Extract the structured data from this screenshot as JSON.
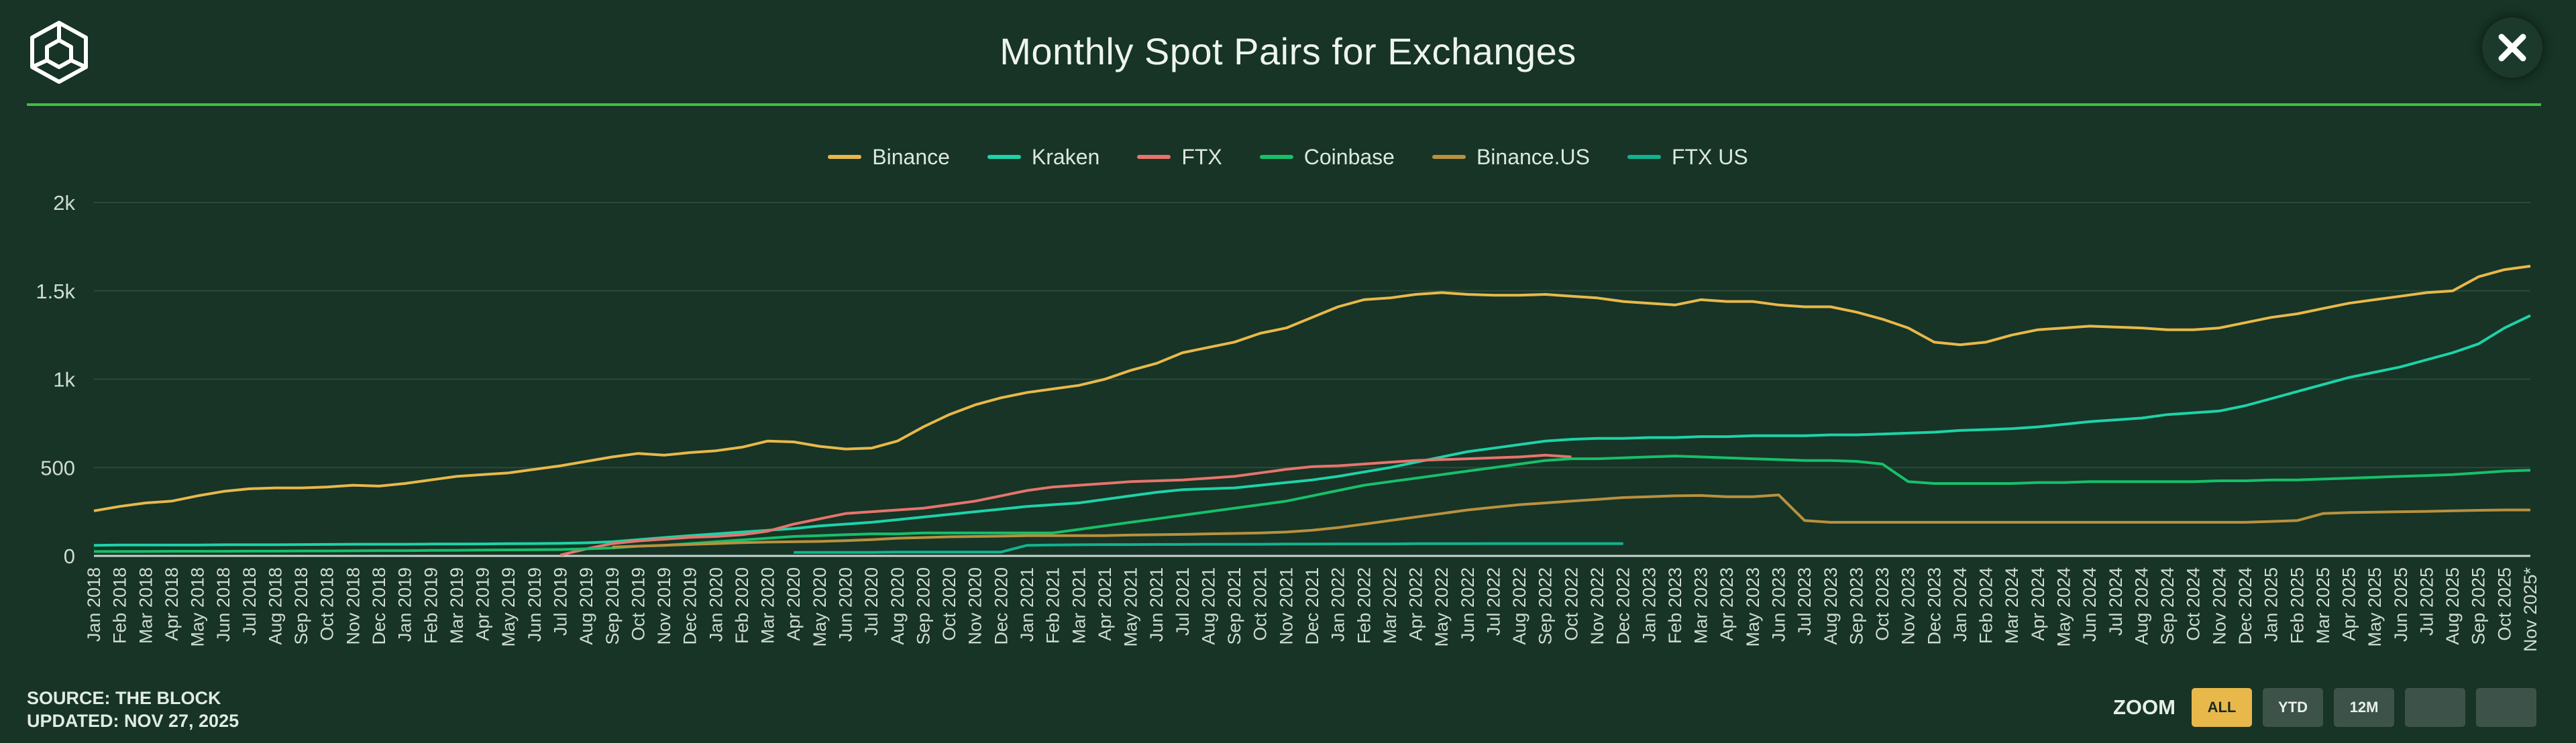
{
  "header": {
    "title": "Monthly Spot Pairs for Exchanges",
    "logo_icon": "the-block-cube-icon",
    "close_icon": "close-icon"
  },
  "footer": {
    "source": "SOURCE: THE BLOCK",
    "updated": "UPDATED: NOV 27, 2025"
  },
  "zoom": {
    "label": "ZOOM",
    "buttons": [
      {
        "label": "ALL",
        "active": true
      },
      {
        "label": "YTD",
        "active": false
      },
      {
        "label": "12M",
        "active": false
      },
      {
        "label": "",
        "active": false
      },
      {
        "label": "",
        "active": false
      }
    ]
  },
  "chart_data": {
    "type": "line",
    "title": "Monthly Spot Pairs for Exchanges",
    "xlabel": "",
    "ylabel": "",
    "ylim": [
      0,
      2000
    ],
    "yticks": [
      {
        "value": 0,
        "label": "0"
      },
      {
        "value": 500,
        "label": "500"
      },
      {
        "value": 1000,
        "label": "1k"
      },
      {
        "value": 1500,
        "label": "1.5k"
      },
      {
        "value": 2000,
        "label": "2k"
      }
    ],
    "grid": true,
    "legend_position": "top-center",
    "x": [
      "Jan 2018",
      "Feb 2018",
      "Mar 2018",
      "Apr 2018",
      "May 2018",
      "Jun 2018",
      "Jul 2018",
      "Aug 2018",
      "Sep 2018",
      "Oct 2018",
      "Nov 2018",
      "Dec 2018",
      "Jan 2019",
      "Feb 2019",
      "Mar 2019",
      "Apr 2019",
      "May 2019",
      "Jun 2019",
      "Jul 2019",
      "Aug 2019",
      "Sep 2019",
      "Oct 2019",
      "Nov 2019",
      "Dec 2019",
      "Jan 2020",
      "Feb 2020",
      "Mar 2020",
      "Apr 2020",
      "May 2020",
      "Jun 2020",
      "Jul 2020",
      "Aug 2020",
      "Sep 2020",
      "Oct 2020",
      "Nov 2020",
      "Dec 2020",
      "Jan 2021",
      "Feb 2021",
      "Mar 2021",
      "Apr 2021",
      "May 2021",
      "Jun 2021",
      "Jul 2021",
      "Aug 2021",
      "Sep 2021",
      "Oct 2021",
      "Nov 2021",
      "Dec 2021",
      "Jan 2022",
      "Feb 2022",
      "Mar 2022",
      "Apr 2022",
      "May 2022",
      "Jun 2022",
      "Jul 2022",
      "Aug 2022",
      "Sep 2022",
      "Oct 2022",
      "Nov 2022",
      "Dec 2022",
      "Jan 2023",
      "Feb 2023",
      "Mar 2023",
      "Apr 2023",
      "May 2023",
      "Jun 2023",
      "Jul 2023",
      "Aug 2023",
      "Sep 2023",
      "Oct 2023",
      "Nov 2023",
      "Dec 2023",
      "Jan 2024",
      "Feb 2024",
      "Mar 2024",
      "Apr 2024",
      "May 2024",
      "Jun 2024",
      "Jul 2024",
      "Aug 2024",
      "Sep 2024",
      "Oct 2024",
      "Nov 2024",
      "Dec 2024",
      "Jan 2025",
      "Feb 2025",
      "Mar 2025",
      "Apr 2025",
      "May 2025",
      "Jun 2025",
      "Jul 2025",
      "Aug 2025",
      "Sep 2025",
      "Oct 2025",
      "Nov 2025*"
    ],
    "series": [
      {
        "name": "Binance",
        "color": "#e8b84a",
        "values": [
          255,
          280,
          300,
          310,
          340,
          365,
          380,
          385,
          385,
          390,
          400,
          395,
          410,
          430,
          450,
          460,
          470,
          490,
          510,
          535,
          560,
          580,
          570,
          585,
          595,
          615,
          650,
          645,
          620,
          605,
          610,
          650,
          730,
          800,
          855,
          895,
          925,
          945,
          965,
          1000,
          1050,
          1090,
          1150,
          1180,
          1210,
          1260,
          1290,
          1350,
          1410,
          1450,
          1460,
          1480,
          1490,
          1480,
          1475,
          1475,
          1480,
          1470,
          1460,
          1440,
          1430,
          1420,
          1450,
          1440,
          1440,
          1420,
          1410,
          1410,
          1380,
          1340,
          1290,
          1210,
          1195,
          1210,
          1250,
          1280,
          1290,
          1300,
          1295,
          1290,
          1280,
          1280,
          1290,
          1320,
          1350,
          1370,
          1400,
          1430,
          1450,
          1470,
          1490,
          1500,
          1580,
          1620,
          1640
        ]
      },
      {
        "name": "Kraken",
        "color": "#1dd3a7",
        "values": [
          60,
          62,
          62,
          62,
          62,
          63,
          63,
          63,
          64,
          65,
          66,
          66,
          66,
          67,
          67,
          68,
          69,
          70,
          71,
          74,
          80,
          92,
          104,
          115,
          125,
          135,
          145,
          155,
          170,
          180,
          190,
          205,
          220,
          235,
          250,
          265,
          280,
          290,
          300,
          320,
          340,
          360,
          375,
          380,
          385,
          400,
          415,
          430,
          450,
          475,
          500,
          530,
          560,
          590,
          610,
          630,
          650,
          660,
          665,
          665,
          670,
          670,
          675,
          675,
          680,
          680,
          680,
          685,
          685,
          690,
          695,
          700,
          710,
          715,
          720,
          730,
          745,
          760,
          770,
          780,
          800,
          810,
          820,
          850,
          890,
          930,
          970,
          1010,
          1040,
          1070,
          1110,
          1150,
          1200,
          1290,
          1360
        ]
      },
      {
        "name": "FTX",
        "color": "#e7746d",
        "values": [
          null,
          null,
          null,
          null,
          null,
          null,
          null,
          null,
          null,
          null,
          null,
          null,
          null,
          null,
          null,
          null,
          null,
          null,
          5,
          40,
          70,
          85,
          95,
          105,
          110,
          120,
          140,
          180,
          210,
          240,
          250,
          260,
          270,
          290,
          310,
          340,
          370,
          390,
          400,
          410,
          420,
          425,
          430,
          440,
          450,
          470,
          490,
          505,
          510,
          520,
          530,
          540,
          545,
          550,
          555,
          560,
          570,
          560,
          null,
          null,
          null,
          null,
          null,
          null,
          null,
          null,
          null,
          null,
          null,
          null,
          null,
          null,
          null,
          null,
          null,
          null,
          null,
          null,
          null,
          null,
          null,
          null,
          null,
          null,
          null,
          null,
          null,
          null,
          null,
          null,
          null,
          null,
          null,
          null,
          null
        ]
      },
      {
        "name": "Coinbase",
        "color": "#16c06a",
        "values": [
          25,
          25,
          25,
          26,
          26,
          26,
          27,
          27,
          28,
          28,
          29,
          30,
          30,
          31,
          32,
          33,
          34,
          35,
          36,
          40,
          45,
          55,
          60,
          70,
          80,
          90,
          100,
          110,
          115,
          120,
          125,
          125,
          130,
          130,
          130,
          130,
          130,
          130,
          150,
          170,
          190,
          210,
          230,
          250,
          270,
          290,
          310,
          340,
          370,
          400,
          420,
          440,
          460,
          480,
          500,
          520,
          540,
          550,
          550,
          555,
          560,
          565,
          560,
          555,
          550,
          545,
          540,
          540,
          535,
          520,
          420,
          410,
          410,
          410,
          410,
          415,
          415,
          420,
          420,
          420,
          420,
          420,
          425,
          425,
          430,
          430,
          435,
          440,
          445,
          450,
          455,
          460,
          470,
          480,
          485
        ]
      },
      {
        "name": "Binance.US",
        "color": "#b9913e",
        "values": [
          null,
          null,
          null,
          null,
          null,
          null,
          null,
          null,
          null,
          null,
          null,
          null,
          null,
          null,
          null,
          null,
          null,
          null,
          null,
          null,
          50,
          55,
          60,
          65,
          70,
          75,
          78,
          80,
          82,
          86,
          92,
          100,
          104,
          108,
          110,
          112,
          115,
          115,
          115,
          115,
          118,
          120,
          122,
          125,
          127,
          130,
          135,
          145,
          160,
          180,
          200,
          220,
          240,
          260,
          275,
          290,
          300,
          310,
          320,
          330,
          335,
          340,
          342,
          335,
          335,
          345,
          200,
          190,
          190,
          190,
          190,
          190,
          190,
          190,
          190,
          190,
          190,
          190,
          190,
          190,
          190,
          190,
          190,
          190,
          195,
          200,
          240,
          245,
          248,
          250,
          252,
          255,
          258,
          260,
          260
        ]
      },
      {
        "name": "FTX US",
        "color": "#12b38f",
        "values": [
          null,
          null,
          null,
          null,
          null,
          null,
          null,
          null,
          null,
          null,
          null,
          null,
          null,
          null,
          null,
          null,
          null,
          null,
          null,
          null,
          null,
          null,
          null,
          null,
          null,
          null,
          null,
          20,
          20,
          20,
          20,
          22,
          22,
          22,
          22,
          22,
          60,
          62,
          63,
          64,
          64,
          65,
          65,
          66,
          66,
          66,
          67,
          67,
          68,
          68,
          68,
          69,
          69,
          69,
          70,
          70,
          70,
          70,
          70,
          70,
          null,
          null,
          null,
          null,
          null,
          null,
          null,
          null,
          null,
          null,
          null,
          null,
          null,
          null,
          null,
          null,
          null,
          null,
          null,
          null,
          null,
          null,
          null,
          null,
          null,
          null,
          null,
          null,
          null,
          null,
          null,
          null,
          null,
          null,
          null
        ]
      }
    ]
  }
}
